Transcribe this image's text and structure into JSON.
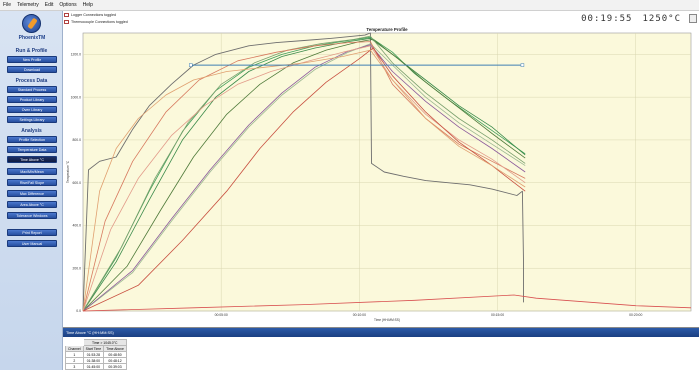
{
  "menu": [
    "File",
    "Telemetry",
    "Edit",
    "Options",
    "Help"
  ],
  "sidebar": {
    "brand": "PhoenixTM",
    "sections": [
      {
        "title": "Run & Profile",
        "buttons": [
          "New Profile",
          "Download"
        ]
      },
      {
        "title": "Process Data",
        "buttons": [
          "Standard Process",
          "Product Library",
          "Oven Library",
          "Settings Library"
        ]
      },
      {
        "title": "Analysis",
        "buttons": [
          "Profile Selection",
          "Temperature Data",
          "Time Above °C",
          "Max/Min/Mean",
          "Rise/Fall Slope",
          "Max Difference",
          "Area Above °C",
          "Tolerance Windows"
        ]
      },
      {
        "title": "",
        "buttons": [
          "Print Report",
          "User Manual"
        ]
      }
    ],
    "active": "Time Above °C"
  },
  "legend_top": [
    "Logger Connections toggled",
    "Thermocouple Connections toggled"
  ],
  "clock": {
    "time": "00:19:55",
    "temp": "1250°C"
  },
  "chart_data": {
    "type": "line",
    "title": "Temperature Profile",
    "xlabel": "Time (HH:MM:SS)",
    "ylabel": "Temperature °C",
    "ylim": [
      0,
      1300
    ],
    "xlim": [
      0,
      1100
    ],
    "y_ticks": [
      0,
      200,
      400,
      600,
      800,
      1000,
      1200
    ],
    "x_ticks": [
      {
        "value": 250,
        "label": "00:05:00"
      },
      {
        "value": 500,
        "label": "00:10:00"
      },
      {
        "value": 750,
        "label": "00:15:00"
      },
      {
        "value": 1000,
        "label": "00:20:00"
      }
    ],
    "threshold": {
      "value": 1150,
      "x_start": 195,
      "x_end": 795
    },
    "grid": true,
    "series": [
      {
        "color": "#6e6e6e",
        "values": [
          [
            0,
            0
          ],
          [
            10,
            660
          ],
          [
            30,
            700
          ],
          [
            60,
            720
          ],
          [
            90,
            850
          ],
          [
            120,
            960
          ],
          [
            160,
            1060
          ],
          [
            200,
            1150
          ],
          [
            240,
            1200
          ],
          [
            300,
            1240
          ],
          [
            350,
            1255
          ],
          [
            400,
            1265
          ],
          [
            450,
            1275
          ],
          [
            510,
            1290
          ],
          [
            520,
            1300
          ],
          [
            522,
            690
          ],
          [
            545,
            650
          ],
          [
            580,
            630
          ],
          [
            620,
            610
          ],
          [
            660,
            600
          ],
          [
            700,
            590
          ],
          [
            740,
            570
          ],
          [
            785,
            540
          ],
          [
            795,
            560
          ],
          [
            797,
            230
          ],
          [
            797,
            40
          ]
        ]
      },
      {
        "color": "#3f9f59",
        "values": [
          [
            0,
            0
          ],
          [
            60,
            250
          ],
          [
            120,
            560
          ],
          [
            180,
            840
          ],
          [
            240,
            1030
          ],
          [
            300,
            1140
          ],
          [
            360,
            1200
          ],
          [
            420,
            1240
          ],
          [
            480,
            1265
          ],
          [
            520,
            1280
          ],
          [
            560,
            1210
          ],
          [
            600,
            1110
          ],
          [
            660,
            990
          ],
          [
            720,
            880
          ],
          [
            800,
            735
          ]
        ]
      },
      {
        "color": "#3a8a4a",
        "values": [
          [
            0,
            0
          ],
          [
            60,
            230
          ],
          [
            120,
            520
          ],
          [
            180,
            800
          ],
          [
            240,
            1000
          ],
          [
            300,
            1120
          ],
          [
            360,
            1190
          ],
          [
            420,
            1230
          ],
          [
            480,
            1260
          ],
          [
            520,
            1275
          ],
          [
            560,
            1200
          ],
          [
            620,
            1080
          ],
          [
            680,
            960
          ],
          [
            740,
            860
          ],
          [
            800,
            730
          ]
        ]
      },
      {
        "color": "#4f7a3a",
        "values": [
          [
            0,
            0
          ],
          [
            80,
            210
          ],
          [
            140,
            470
          ],
          [
            200,
            720
          ],
          [
            260,
            920
          ],
          [
            320,
            1060
          ],
          [
            380,
            1160
          ],
          [
            440,
            1220
          ],
          [
            500,
            1260
          ],
          [
            525,
            1270
          ],
          [
            570,
            1180
          ],
          [
            620,
            1070
          ],
          [
            680,
            950
          ],
          [
            740,
            830
          ],
          [
            800,
            715
          ]
        ]
      },
      {
        "color": "#7aa06e",
        "values": [
          [
            0,
            0
          ],
          [
            70,
            300
          ],
          [
            130,
            620
          ],
          [
            190,
            880
          ],
          [
            250,
            1060
          ],
          [
            310,
            1160
          ],
          [
            370,
            1220
          ],
          [
            430,
            1250
          ],
          [
            490,
            1270
          ],
          [
            520,
            1285
          ],
          [
            560,
            1160
          ],
          [
            620,
            1020
          ],
          [
            680,
            900
          ],
          [
            740,
            800
          ],
          [
            800,
            690
          ]
        ]
      },
      {
        "color": "#9cb892",
        "values": [
          [
            0,
            0
          ],
          [
            90,
            180
          ],
          [
            160,
            420
          ],
          [
            230,
            650
          ],
          [
            300,
            860
          ],
          [
            360,
            1010
          ],
          [
            420,
            1130
          ],
          [
            480,
            1210
          ],
          [
            520,
            1250
          ],
          [
            560,
            1150
          ],
          [
            620,
            1000
          ],
          [
            680,
            880
          ],
          [
            740,
            780
          ],
          [
            800,
            680
          ]
        ]
      },
      {
        "color": "#8b5a9b",
        "values": [
          [
            0,
            0
          ],
          [
            90,
            190
          ],
          [
            160,
            430
          ],
          [
            230,
            660
          ],
          [
            300,
            870
          ],
          [
            360,
            1020
          ],
          [
            420,
            1140
          ],
          [
            480,
            1215
          ],
          [
            520,
            1245
          ],
          [
            560,
            1120
          ],
          [
            620,
            980
          ],
          [
            680,
            860
          ],
          [
            740,
            760
          ],
          [
            800,
            650
          ]
        ]
      },
      {
        "color": "#d77a5f",
        "values": [
          [
            0,
            0
          ],
          [
            40,
            420
          ],
          [
            90,
            700
          ],
          [
            150,
            930
          ],
          [
            210,
            1080
          ],
          [
            280,
            1170
          ],
          [
            350,
            1210
          ],
          [
            420,
            1240
          ],
          [
            480,
            1255
          ],
          [
            520,
            1260
          ],
          [
            560,
            1060
          ],
          [
            620,
            900
          ],
          [
            680,
            780
          ],
          [
            740,
            700
          ],
          [
            800,
            620
          ]
        ]
      },
      {
        "color": "#e29b8a",
        "values": [
          [
            0,
            0
          ],
          [
            50,
            380
          ],
          [
            100,
            620
          ],
          [
            160,
            820
          ],
          [
            220,
            960
          ],
          [
            280,
            1060
          ],
          [
            340,
            1120
          ],
          [
            410,
            1170
          ],
          [
            470,
            1210
          ],
          [
            520,
            1240
          ],
          [
            560,
            1080
          ],
          [
            620,
            920
          ],
          [
            680,
            800
          ],
          [
            740,
            710
          ],
          [
            800,
            600
          ]
        ]
      },
      {
        "color": "#c85040",
        "values": [
          [
            0,
            0
          ],
          [
            100,
            120
          ],
          [
            180,
            330
          ],
          [
            260,
            560
          ],
          [
            320,
            760
          ],
          [
            380,
            930
          ],
          [
            440,
            1070
          ],
          [
            500,
            1180
          ],
          [
            525,
            1230
          ],
          [
            560,
            1100
          ],
          [
            620,
            930
          ],
          [
            680,
            790
          ],
          [
            740,
            680
          ],
          [
            770,
            620
          ],
          [
            800,
            560
          ]
        ]
      },
      {
        "color": "#e0a070",
        "values": [
          [
            0,
            0
          ],
          [
            30,
            560
          ],
          [
            60,
            760
          ],
          [
            100,
            900
          ],
          [
            150,
            1010
          ],
          [
            200,
            1080
          ],
          [
            260,
            1120
          ],
          [
            330,
            1140
          ],
          [
            400,
            1160
          ],
          [
            470,
            1190
          ],
          [
            520,
            1220
          ],
          [
            560,
            1080
          ],
          [
            620,
            900
          ],
          [
            680,
            770
          ],
          [
            740,
            680
          ],
          [
            800,
            580
          ]
        ]
      },
      {
        "color": "#d85050",
        "values": [
          [
            0,
            0
          ],
          [
            200,
            15
          ],
          [
            400,
            30
          ],
          [
            600,
            50
          ],
          [
            780,
            75
          ],
          [
            820,
            60
          ],
          [
            1000,
            25
          ],
          [
            1100,
            15
          ]
        ]
      }
    ]
  },
  "bottom": {
    "header": "Time Above °C (HH:MM:SS)",
    "group_header": "Time > 1045.0°C",
    "columns": [
      "Channel",
      "Start Time",
      "Time Above"
    ],
    "rows": [
      [
        "1",
        "01:53:28",
        "00:48:50"
      ],
      [
        "2",
        "01:38:00",
        "00:48:12"
      ],
      [
        "3",
        "01:45:00",
        "00:39:03"
      ]
    ]
  }
}
